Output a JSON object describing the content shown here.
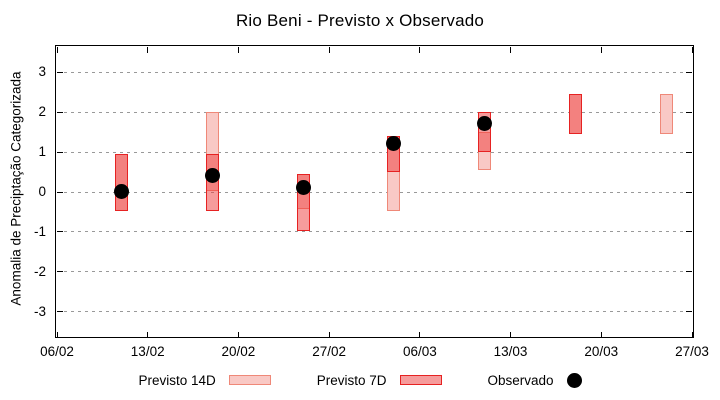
{
  "title": "Rio Beni - Previsto x Observado",
  "chart_data": {
    "type": "bar",
    "subtype": "forecast-range-bars-with-observed-points",
    "title": "Rio Beni - Previsto x Observado",
    "xlabel": "",
    "ylabel": "Anomalia de Preciptação Categorizada",
    "x_tick_labels": [
      "06/02",
      "13/02",
      "20/02",
      "27/02",
      "06/03",
      "13/03",
      "20/03",
      "27/03"
    ],
    "x_span_days": 49,
    "y_ticks": [
      3,
      2,
      1,
      0,
      -1,
      -2,
      -3
    ],
    "ylim": [
      -3.6,
      3.6
    ],
    "grid": "horizontal-dashed-gray",
    "legend_position": "bottom-outside",
    "series": [
      {
        "name": "Previsto 14D",
        "type": "range-bar",
        "fill": "#f9c9c5",
        "border": "#ef8878",
        "points": [
          {
            "date": "11/02",
            "low": -0.5,
            "high": 0.95
          },
          {
            "date": "18/02",
            "low": 0.0,
            "high": 2.0
          },
          {
            "date": "25/02",
            "low": -0.45,
            "high": 0.45
          },
          {
            "date": "04/03",
            "low": -0.5,
            "high": 1.4
          },
          {
            "date": "11/03",
            "low": 0.55,
            "high": 1.5
          },
          {
            "date": "18/03",
            "low": 1.45,
            "high": 2.45
          },
          {
            "date": "25/03",
            "low": 1.45,
            "high": 2.45
          }
        ]
      },
      {
        "name": "Previsto 7D",
        "type": "range-bar",
        "fill": "rgba(238,58,58,0.5)",
        "border": "#e62222",
        "points": [
          {
            "date": "11/02",
            "low": -0.5,
            "high": 0.95
          },
          {
            "date": "18/02",
            "low": -0.5,
            "high": 0.95
          },
          {
            "date": "25/02",
            "low": -1.0,
            "high": 0.45
          },
          {
            "date": "04/03",
            "low": 0.5,
            "high": 1.4
          },
          {
            "date": "11/03",
            "low": 1.0,
            "high": 2.0
          },
          {
            "date": "18/03",
            "low": 1.45,
            "high": 2.45
          }
        ]
      },
      {
        "name": "Observado",
        "type": "scatter",
        "color": "#000000",
        "points": [
          {
            "date": "11/02",
            "value": 0.0
          },
          {
            "date": "18/02",
            "value": 0.4
          },
          {
            "date": "25/02",
            "value": 0.1
          },
          {
            "date": "04/03",
            "value": 1.2
          },
          {
            "date": "11/03",
            "value": 1.7
          }
        ]
      }
    ]
  },
  "legend": {
    "items": [
      {
        "label": "Previsto 14D",
        "swatch": "box-14d"
      },
      {
        "label": "Previsto 7D",
        "swatch": "box-7d"
      },
      {
        "label": "Observado",
        "swatch": "dot"
      }
    ]
  },
  "colors": {
    "forecast14_fill": "#f9c9c5",
    "forecast14_border": "#ef8878",
    "forecast7_fill": "rgba(238,58,58,0.5)",
    "forecast7_border": "#e62222",
    "observed": "#000000",
    "grid": "#999999",
    "axis": "#000000",
    "background": "#ffffff"
  }
}
